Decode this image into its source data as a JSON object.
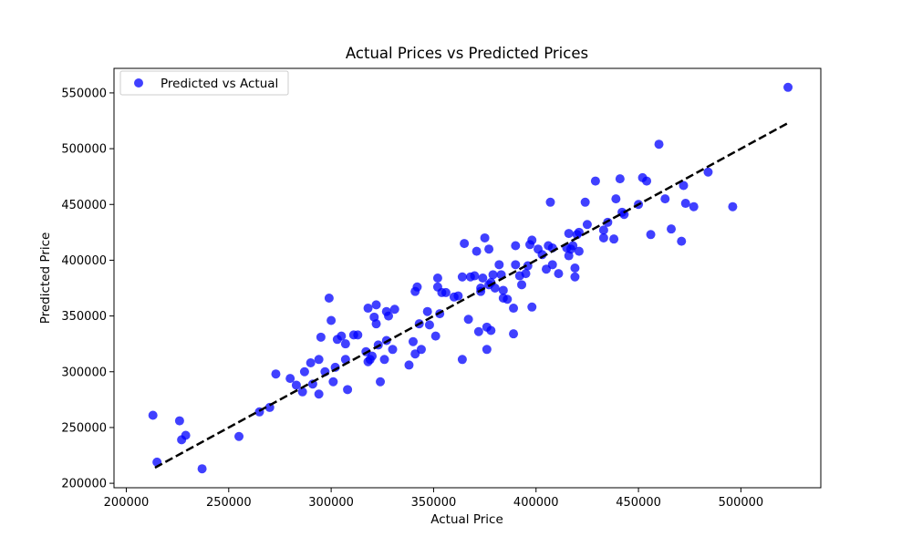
{
  "chart_data": {
    "type": "scatter",
    "title": "Actual Prices vs Predicted Prices",
    "xlabel": "Actual Price",
    "ylabel": "Predicted Price",
    "xlim": [
      194000,
      539000
    ],
    "ylim": [
      196000,
      572000
    ],
    "xticks": [
      200000,
      250000,
      300000,
      350000,
      400000,
      450000,
      500000
    ],
    "yticks": [
      200000,
      250000,
      300000,
      350000,
      400000,
      450000,
      500000,
      550000
    ],
    "xtick_labels": [
      "200000",
      "250000",
      "300000",
      "350000",
      "400000",
      "450000",
      "500000"
    ],
    "ytick_labels": [
      "200000",
      "250000",
      "300000",
      "350000",
      "400000",
      "450000",
      "500000",
      "550000"
    ],
    "grid": false,
    "legend_position": "top-left",
    "point_color": "#0000ff",
    "line_color": "#000000",
    "series": [
      {
        "name": "Predicted vs Actual",
        "points": [
          [
            213000,
            261000
          ],
          [
            215000,
            219000
          ],
          [
            226000,
            256000
          ],
          [
            227000,
            239000
          ],
          [
            229000,
            243000
          ],
          [
            237000,
            213000
          ],
          [
            255000,
            242000
          ],
          [
            265000,
            264000
          ],
          [
            270000,
            268000
          ],
          [
            273000,
            298000
          ],
          [
            280000,
            294000
          ],
          [
            283000,
            288000
          ],
          [
            286000,
            282000
          ],
          [
            287000,
            300000
          ],
          [
            290000,
            308000
          ],
          [
            291000,
            289000
          ],
          [
            294000,
            280000
          ],
          [
            294000,
            311000
          ],
          [
            295000,
            331000
          ],
          [
            297000,
            300000
          ],
          [
            299000,
            366000
          ],
          [
            300000,
            346000
          ],
          [
            301000,
            291000
          ],
          [
            302000,
            304000
          ],
          [
            303000,
            329000
          ],
          [
            305000,
            332000
          ],
          [
            307000,
            311000
          ],
          [
            307000,
            325000
          ],
          [
            308000,
            284000
          ],
          [
            311000,
            333000
          ],
          [
            313000,
            333000
          ],
          [
            317000,
            318000
          ],
          [
            318000,
            357000
          ],
          [
            318000,
            309000
          ],
          [
            319000,
            311000
          ],
          [
            320000,
            314000
          ],
          [
            321000,
            349000
          ],
          [
            322000,
            343000
          ],
          [
            322000,
            360000
          ],
          [
            323000,
            324000
          ],
          [
            324000,
            291000
          ],
          [
            326000,
            311000
          ],
          [
            327000,
            328000
          ],
          [
            327000,
            354000
          ],
          [
            328000,
            350000
          ],
          [
            330000,
            320000
          ],
          [
            331000,
            356000
          ],
          [
            338000,
            306000
          ],
          [
            340000,
            327000
          ],
          [
            341000,
            316000
          ],
          [
            341000,
            372000
          ],
          [
            342000,
            376000
          ],
          [
            343000,
            343000
          ],
          [
            344000,
            320000
          ],
          [
            347000,
            354000
          ],
          [
            348000,
            342000
          ],
          [
            351000,
            332000
          ],
          [
            352000,
            376000
          ],
          [
            352000,
            384000
          ],
          [
            353000,
            352000
          ],
          [
            354000,
            371000
          ],
          [
            356000,
            371000
          ],
          [
            360000,
            367000
          ],
          [
            362000,
            368000
          ],
          [
            364000,
            311000
          ],
          [
            364000,
            385000
          ],
          [
            365000,
            415000
          ],
          [
            367000,
            347000
          ],
          [
            368000,
            385000
          ],
          [
            370000,
            386000
          ],
          [
            371000,
            408000
          ],
          [
            372000,
            336000
          ],
          [
            373000,
            372000
          ],
          [
            373000,
            375000
          ],
          [
            374000,
            384000
          ],
          [
            375000,
            420000
          ],
          [
            376000,
            320000
          ],
          [
            376000,
            340000
          ],
          [
            377000,
            378000
          ],
          [
            377000,
            410000
          ],
          [
            378000,
            337000
          ],
          [
            378000,
            380000
          ],
          [
            379000,
            387000
          ],
          [
            380000,
            375000
          ],
          [
            382000,
            396000
          ],
          [
            383000,
            387000
          ],
          [
            384000,
            366000
          ],
          [
            384000,
            373000
          ],
          [
            386000,
            365000
          ],
          [
            389000,
            334000
          ],
          [
            389000,
            357000
          ],
          [
            390000,
            396000
          ],
          [
            390000,
            413000
          ],
          [
            392000,
            386000
          ],
          [
            393000,
            378000
          ],
          [
            395000,
            388000
          ],
          [
            396000,
            395000
          ],
          [
            397000,
            414000
          ],
          [
            398000,
            358000
          ],
          [
            398000,
            418000
          ],
          [
            401000,
            410000
          ],
          [
            403000,
            405000
          ],
          [
            405000,
            392000
          ],
          [
            406000,
            413000
          ],
          [
            407000,
            452000
          ],
          [
            408000,
            411000
          ],
          [
            408000,
            396000
          ],
          [
            411000,
            388000
          ],
          [
            415000,
            411000
          ],
          [
            416000,
            424000
          ],
          [
            416000,
            404000
          ],
          [
            417000,
            410000
          ],
          [
            418000,
            413000
          ],
          [
            419000,
            385000
          ],
          [
            419000,
            393000
          ],
          [
            420000,
            423000
          ],
          [
            421000,
            408000
          ],
          [
            421000,
            425000
          ],
          [
            424000,
            452000
          ],
          [
            425000,
            432000
          ],
          [
            429000,
            471000
          ],
          [
            433000,
            420000
          ],
          [
            433000,
            427000
          ],
          [
            435000,
            434000
          ],
          [
            438000,
            419000
          ],
          [
            439000,
            455000
          ],
          [
            441000,
            473000
          ],
          [
            442000,
            443000
          ],
          [
            443000,
            441000
          ],
          [
            450000,
            450000
          ],
          [
            452000,
            474000
          ],
          [
            454000,
            471000
          ],
          [
            456000,
            423000
          ],
          [
            460000,
            504000
          ],
          [
            463000,
            455000
          ],
          [
            466000,
            428000
          ],
          [
            471000,
            417000
          ],
          [
            472000,
            467000
          ],
          [
            473000,
            451000
          ],
          [
            477000,
            448000
          ],
          [
            484000,
            479000
          ],
          [
            496000,
            448000
          ],
          [
            523000,
            555000
          ]
        ]
      }
    ],
    "reference_line": {
      "points": [
        [
          214000,
          214000
        ],
        [
          523000,
          523000
        ]
      ]
    }
  }
}
